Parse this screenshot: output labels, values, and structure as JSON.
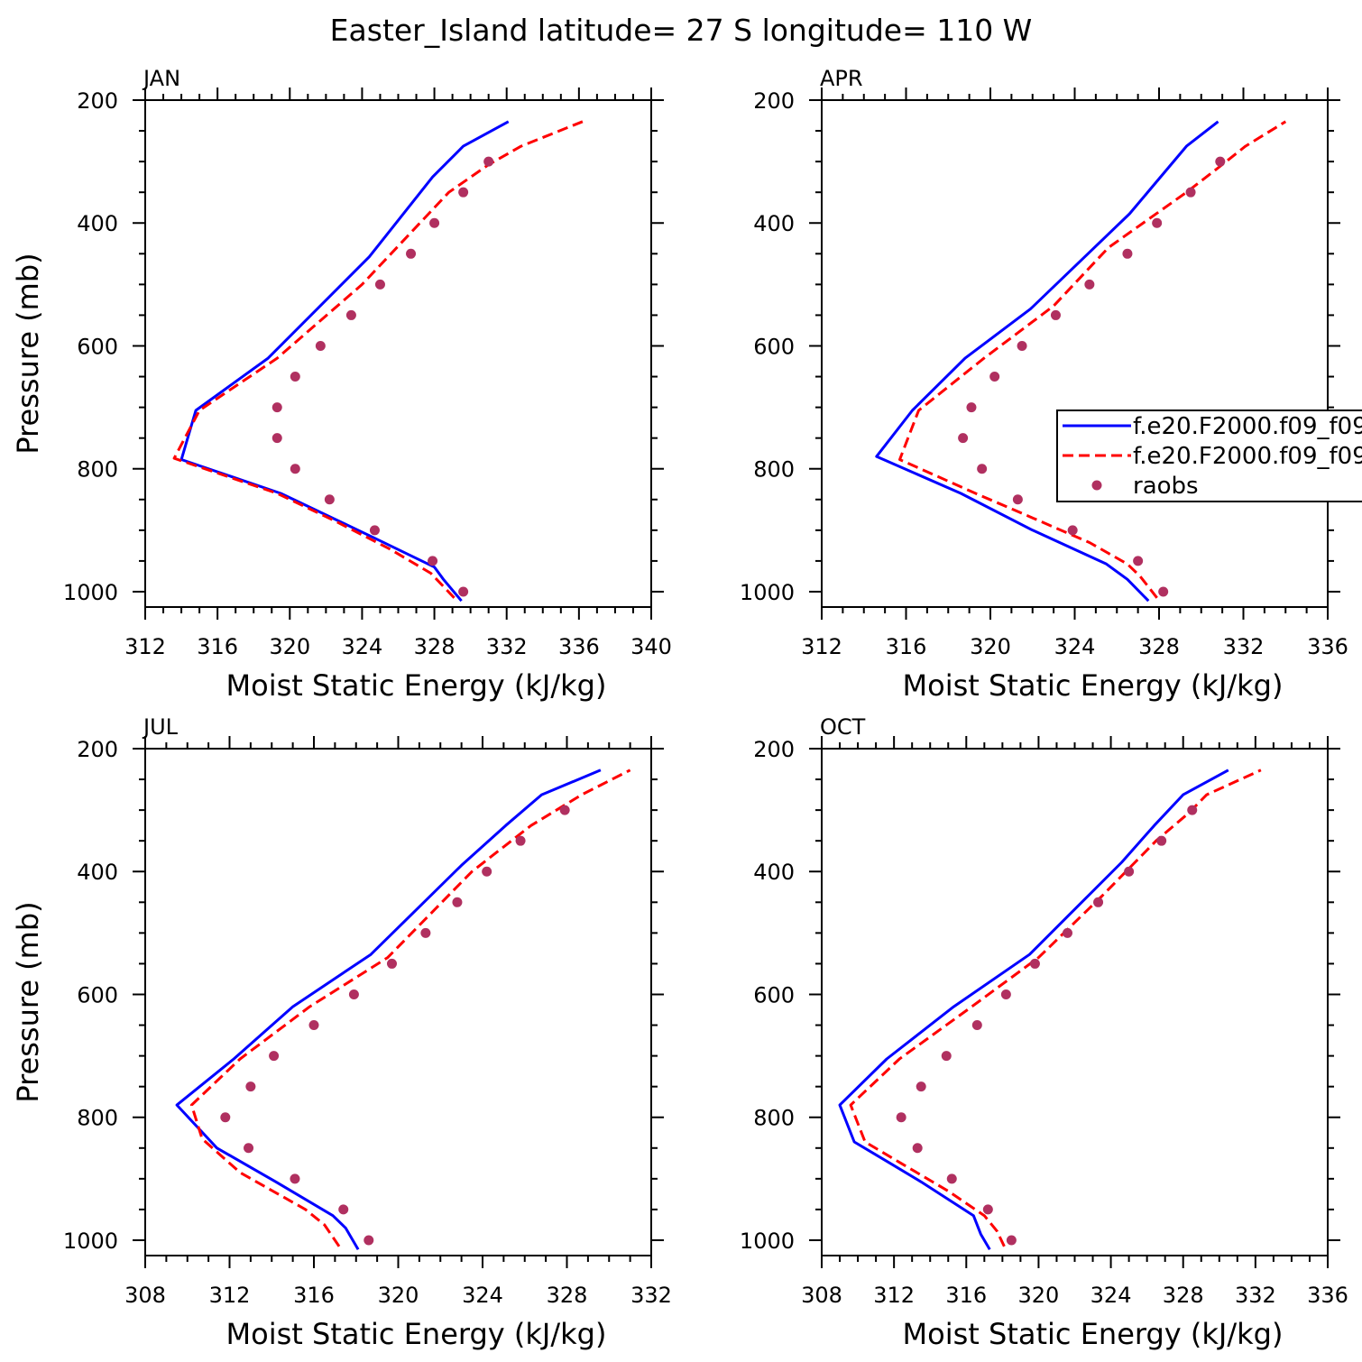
{
  "title": "Easter_Island  latitude= 27 S longitude= 110 W",
  "colors": {
    "model1": "#0000ff",
    "model2": "#ff0000",
    "raobs": "#b03060"
  },
  "legend": {
    "panel": 1,
    "entries": [
      {
        "label": "f.e20.F2000.f09_f09",
        "style": "solid-blue"
      },
      {
        "label": "f.e20.F2000.f09_f09",
        "style": "dashed-red"
      },
      {
        "label": "raobs",
        "style": "dots"
      }
    ]
  },
  "chart_data": [
    {
      "type": "line",
      "title": "JAN",
      "xlabel": "Moist Static Energy (kJ/kg)",
      "ylabel": "Pressure (mb)",
      "xlim": [
        312,
        340
      ],
      "xticks": [
        312,
        316,
        320,
        324,
        328,
        332,
        336,
        340
      ],
      "ylim": [
        1025,
        200
      ],
      "yticks": [
        200,
        400,
        600,
        800,
        1000
      ],
      "series": [
        {
          "key": "m1",
          "p": [
            1015,
            980,
            960,
            910,
            840,
            785,
            705,
            620,
            455,
            325,
            275,
            235
          ],
          "e": [
            329.5,
            328.5,
            328,
            324.5,
            319.5,
            314,
            314.8,
            318.8,
            324.4,
            327.9,
            329.6,
            332.1
          ]
        },
        {
          "key": "m2",
          "p": [
            1010,
            970,
            930,
            885,
            840,
            783,
            705,
            620,
            500,
            350,
            305,
            275,
            235
          ],
          "e": [
            329.1,
            327.8,
            325.5,
            322.5,
            319.3,
            313.6,
            315,
            319.3,
            324,
            328.8,
            331,
            332.8,
            336.2
          ]
        },
        {
          "key": "raobs",
          "p": [
            300,
            350,
            400,
            450,
            500,
            550,
            600,
            650,
            700,
            750,
            800,
            850,
            900,
            950,
            1000
          ],
          "e": [
            331,
            329.6,
            328,
            326.7,
            325,
            323.4,
            321.7,
            320.3,
            319.3,
            319.3,
            320.3,
            322.2,
            324.7,
            327.9,
            329.6
          ]
        }
      ]
    },
    {
      "type": "line",
      "title": "APR",
      "xlabel": "Moist Static Energy (kJ/kg)",
      "ylabel": "",
      "xlim": [
        312,
        336
      ],
      "xticks": [
        312,
        316,
        320,
        324,
        328,
        332,
        336
      ],
      "ylim": [
        1025,
        200
      ],
      "yticks": [
        200,
        400,
        600,
        800,
        1000
      ],
      "series": [
        {
          "key": "m1",
          "p": [
            1015,
            980,
            955,
            900,
            840,
            780,
            705,
            620,
            540,
            385,
            275,
            235
          ],
          "e": [
            327.5,
            326.5,
            325.5,
            322,
            318.6,
            314.6,
            316.3,
            318.8,
            321.9,
            326.6,
            329.3,
            330.8
          ]
        },
        {
          "key": "m2",
          "p": [
            1010,
            975,
            955,
            920,
            880,
            840,
            785,
            705,
            620,
            535,
            440,
            350,
            305,
            275,
            235
          ],
          "e": [
            327.9,
            327.1,
            326.5,
            324.7,
            322,
            319.3,
            315.7,
            316.6,
            319.7,
            323,
            325.6,
            329.3,
            331,
            332.1,
            334
          ]
        },
        {
          "key": "raobs",
          "p": [
            300,
            350,
            400,
            450,
            500,
            550,
            600,
            650,
            700,
            750,
            800,
            850,
            900,
            950,
            1000
          ],
          "e": [
            330.9,
            329.5,
            327.9,
            326.5,
            324.7,
            323.1,
            321.5,
            320.2,
            319.1,
            318.7,
            319.6,
            321.3,
            323.9,
            327,
            328.2
          ]
        }
      ]
    },
    {
      "type": "line",
      "title": "JUL",
      "xlabel": "Moist Static Energy (kJ/kg)",
      "ylabel": "Pressure (mb)",
      "xlim": [
        308,
        332
      ],
      "xticks": [
        308,
        312,
        316,
        320,
        324,
        328,
        332
      ],
      "ylim": [
        1025,
        200
      ],
      "yticks": [
        200,
        400,
        600,
        800,
        1000
      ],
      "series": [
        {
          "key": "m1",
          "p": [
            1015,
            980,
            960,
            905,
            850,
            780,
            705,
            620,
            535,
            390,
            325,
            275,
            235
          ],
          "e": [
            318.1,
            317.5,
            316.9,
            314.2,
            311.4,
            309.5,
            312.2,
            315,
            318.7,
            323,
            325.1,
            326.8,
            329.6
          ]
        },
        {
          "key": "m2",
          "p": [
            1010,
            975,
            950,
            890,
            835,
            780,
            705,
            620,
            540,
            400,
            325,
            275,
            235
          ],
          "e": [
            317.2,
            316.5,
            315.6,
            312.5,
            310.7,
            310.2,
            312.5,
            315.8,
            319.5,
            323.5,
            326.3,
            328.7,
            331
          ]
        },
        {
          "key": "raobs",
          "p": [
            300,
            350,
            400,
            450,
            500,
            550,
            600,
            650,
            700,
            750,
            800,
            850,
            900,
            950,
            1000
          ],
          "e": [
            327.9,
            325.8,
            324.2,
            322.8,
            321.3,
            319.7,
            317.9,
            316,
            314.1,
            313,
            311.8,
            312.9,
            315.1,
            317.4,
            318.6
          ]
        }
      ]
    },
    {
      "type": "line",
      "title": "OCT",
      "xlabel": "Moist Static Energy (kJ/kg)",
      "ylabel": "",
      "xlim": [
        308,
        336
      ],
      "xticks": [
        308,
        312,
        316,
        320,
        324,
        328,
        332,
        336
      ],
      "ylim": [
        1025,
        200
      ],
      "yticks": [
        200,
        400,
        600,
        800,
        1000
      ],
      "series": [
        {
          "key": "m1",
          "p": [
            1015,
            990,
            960,
            905,
            875,
            840,
            780,
            705,
            620,
            535,
            385,
            325,
            275,
            235
          ],
          "e": [
            317.3,
            316.8,
            316.4,
            313.5,
            311.8,
            309.8,
            309,
            311.6,
            315.3,
            319.5,
            324.6,
            326.4,
            328,
            330.5
          ]
        },
        {
          "key": "m2",
          "p": [
            1010,
            985,
            960,
            920,
            875,
            840,
            780,
            705,
            620,
            540,
            440,
            350,
            305,
            275,
            235
          ],
          "e": [
            318.1,
            317.7,
            317,
            315,
            312.4,
            310.4,
            309.6,
            312.3,
            316.3,
            320,
            323.5,
            326.5,
            328.3,
            329.3,
            332.3
          ]
        },
        {
          "key": "raobs",
          "p": [
            300,
            350,
            400,
            450,
            500,
            550,
            600,
            650,
            700,
            750,
            800,
            850,
            900,
            950,
            1000
          ],
          "e": [
            328.5,
            326.8,
            325,
            323.3,
            321.6,
            319.8,
            318.2,
            316.6,
            314.9,
            313.5,
            312.4,
            313.3,
            315.2,
            317.2,
            318.5
          ]
        }
      ]
    }
  ]
}
